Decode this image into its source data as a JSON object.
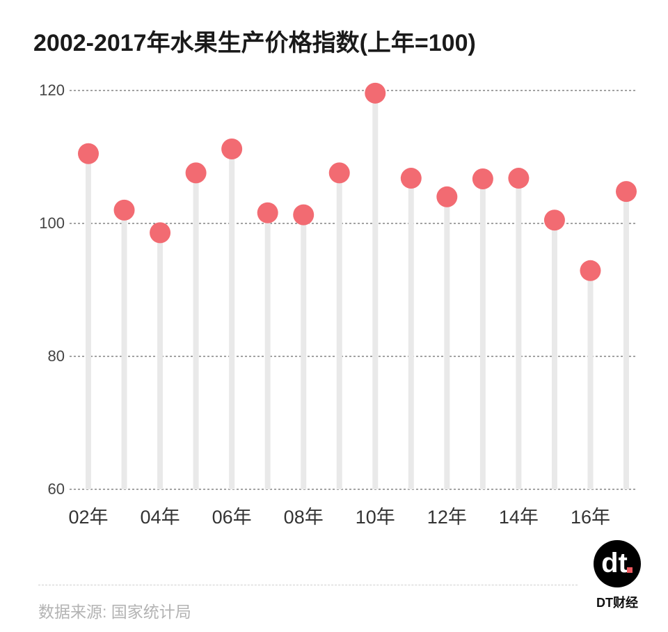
{
  "chart_data": {
    "type": "lollipop",
    "title": "2002-2017年水果生产价格指数(上年=100)",
    "xlabel": "",
    "ylabel": "",
    "ylim": [
      60,
      120
    ],
    "yticks": [
      60,
      80,
      100,
      120
    ],
    "grid": true,
    "categories": [
      "2002",
      "2003",
      "2004",
      "2005",
      "2006",
      "2007",
      "2008",
      "2009",
      "2010",
      "2011",
      "2012",
      "2013",
      "2014",
      "2015",
      "2016",
      "2017"
    ],
    "xtick_labels": [
      "02年",
      "",
      "04年",
      "",
      "06年",
      "",
      "08年",
      "",
      "10年",
      "",
      "12年",
      "",
      "14年",
      "",
      "16年",
      ""
    ],
    "values": [
      110.5,
      102.0,
      98.6,
      107.6,
      111.2,
      101.6,
      101.3,
      107.6,
      119.6,
      106.8,
      104.0,
      106.7,
      106.8,
      100.5,
      92.9,
      104.8
    ],
    "colors": {
      "dot": "#f26b72",
      "stem": "#e9e9e9",
      "grid": "#444444"
    }
  },
  "footer": {
    "source": "数据来源: 国家统计局"
  },
  "brand": {
    "name": "DT财经",
    "logo_text": "dt"
  }
}
